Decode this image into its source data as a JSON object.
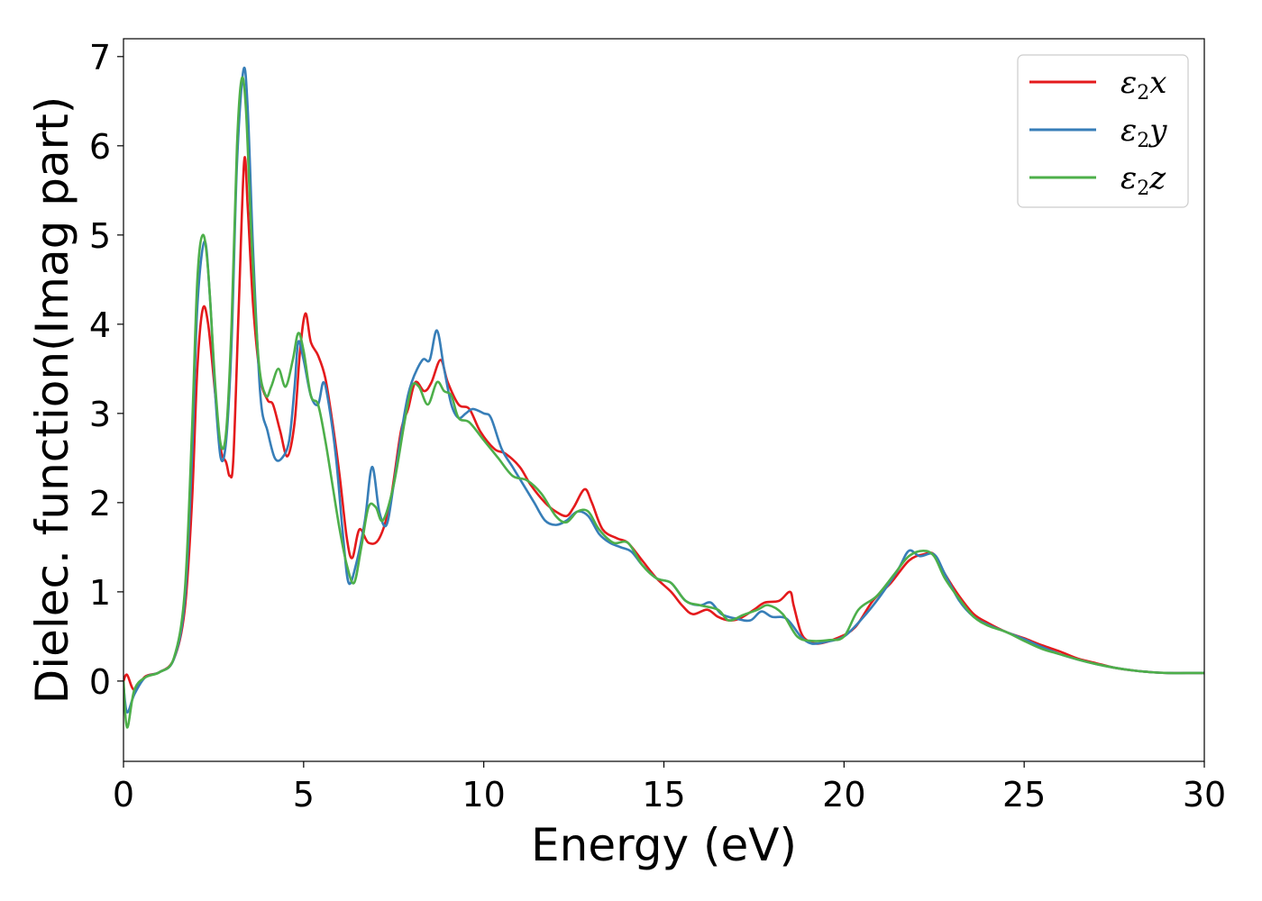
{
  "chart_data": {
    "type": "line",
    "xlabel": "Energy (eV)",
    "ylabel": "Dielec. function(Imag part)",
    "xlim": [
      0,
      30
    ],
    "ylim": [
      -0.9,
      7.2
    ],
    "xticks": [
      0,
      5,
      10,
      15,
      20,
      25,
      30
    ],
    "yticks": [
      0,
      1,
      2,
      3,
      4,
      5,
      6,
      7
    ],
    "grid": false,
    "legend_position": "top-right",
    "series": [
      {
        "name": "ε₂x",
        "legend": {
          "base": "ε",
          "sub": "2",
          "suffix": "x"
        },
        "color": "#e41a1c",
        "points": [
          [
            0,
            0.0
          ],
          [
            0.1,
            0.07
          ],
          [
            0.3,
            -0.1
          ],
          [
            0.6,
            0.05
          ],
          [
            1.0,
            0.1
          ],
          [
            1.4,
            0.25
          ],
          [
            1.7,
            0.8
          ],
          [
            1.9,
            2.0
          ],
          [
            2.05,
            3.5
          ],
          [
            2.2,
            4.17
          ],
          [
            2.35,
            4.0
          ],
          [
            2.55,
            3.2
          ],
          [
            2.7,
            2.6
          ],
          [
            2.85,
            2.45
          ],
          [
            2.95,
            2.3
          ],
          [
            3.05,
            2.5
          ],
          [
            3.2,
            4.2
          ],
          [
            3.35,
            5.83
          ],
          [
            3.45,
            5.3
          ],
          [
            3.6,
            4.2
          ],
          [
            3.8,
            3.4
          ],
          [
            4.0,
            3.15
          ],
          [
            4.15,
            3.1
          ],
          [
            4.35,
            2.8
          ],
          [
            4.55,
            2.52
          ],
          [
            4.75,
            2.9
          ],
          [
            4.9,
            3.7
          ],
          [
            5.05,
            4.12
          ],
          [
            5.2,
            3.8
          ],
          [
            5.4,
            3.65
          ],
          [
            5.6,
            3.4
          ],
          [
            5.8,
            2.9
          ],
          [
            6.0,
            2.3
          ],
          [
            6.2,
            1.6
          ],
          [
            6.35,
            1.38
          ],
          [
            6.55,
            1.7
          ],
          [
            6.8,
            1.55
          ],
          [
            7.1,
            1.6
          ],
          [
            7.4,
            2.0
          ],
          [
            7.7,
            2.8
          ],
          [
            7.9,
            3.05
          ],
          [
            8.1,
            3.35
          ],
          [
            8.35,
            3.25
          ],
          [
            8.55,
            3.35
          ],
          [
            8.8,
            3.6
          ],
          [
            9.0,
            3.35
          ],
          [
            9.3,
            3.1
          ],
          [
            9.6,
            3.05
          ],
          [
            9.9,
            2.8
          ],
          [
            10.3,
            2.6
          ],
          [
            10.6,
            2.55
          ],
          [
            11.0,
            2.4
          ],
          [
            11.3,
            2.2
          ],
          [
            11.7,
            2.0
          ],
          [
            12.0,
            1.9
          ],
          [
            12.3,
            1.85
          ],
          [
            12.5,
            1.95
          ],
          [
            12.8,
            2.15
          ],
          [
            13.0,
            2.0
          ],
          [
            13.3,
            1.7
          ],
          [
            13.7,
            1.6
          ],
          [
            14.0,
            1.55
          ],
          [
            14.4,
            1.35
          ],
          [
            14.8,
            1.15
          ],
          [
            15.2,
            1.0
          ],
          [
            15.5,
            0.85
          ],
          [
            15.8,
            0.75
          ],
          [
            16.2,
            0.8
          ],
          [
            16.5,
            0.72
          ],
          [
            16.8,
            0.68
          ],
          [
            17.1,
            0.7
          ],
          [
            17.5,
            0.8
          ],
          [
            17.8,
            0.88
          ],
          [
            18.2,
            0.9
          ],
          [
            18.5,
            1.0
          ],
          [
            18.6,
            0.85
          ],
          [
            18.8,
            0.55
          ],
          [
            19.0,
            0.45
          ],
          [
            19.3,
            0.42
          ],
          [
            19.8,
            0.48
          ],
          [
            20.3,
            0.6
          ],
          [
            20.8,
            0.9
          ],
          [
            21.3,
            1.1
          ],
          [
            21.8,
            1.35
          ],
          [
            22.2,
            1.42
          ],
          [
            22.5,
            1.42
          ],
          [
            22.8,
            1.2
          ],
          [
            23.2,
            0.95
          ],
          [
            23.6,
            0.75
          ],
          [
            24.0,
            0.65
          ],
          [
            24.5,
            0.55
          ],
          [
            25.0,
            0.48
          ],
          [
            25.5,
            0.4
          ],
          [
            26.0,
            0.33
          ],
          [
            26.5,
            0.25
          ],
          [
            27.0,
            0.2
          ],
          [
            27.5,
            0.15
          ],
          [
            28.0,
            0.12
          ],
          [
            28.5,
            0.1
          ],
          [
            29.0,
            0.09
          ],
          [
            29.5,
            0.09
          ],
          [
            30.0,
            0.09
          ]
        ]
      },
      {
        "name": "ε₂y",
        "legend": {
          "base": "ε",
          "sub": "2",
          "suffix": "y"
        },
        "color": "#377eb8",
        "points": [
          [
            0,
            -0.05
          ],
          [
            0.1,
            -0.35
          ],
          [
            0.3,
            -0.15
          ],
          [
            0.6,
            0.04
          ],
          [
            1.0,
            0.1
          ],
          [
            1.4,
            0.25
          ],
          [
            1.7,
            0.9
          ],
          [
            1.9,
            2.5
          ],
          [
            2.05,
            4.2
          ],
          [
            2.25,
            4.93
          ],
          [
            2.4,
            4.3
          ],
          [
            2.55,
            3.2
          ],
          [
            2.7,
            2.5
          ],
          [
            2.85,
            2.7
          ],
          [
            3.0,
            3.8
          ],
          [
            3.15,
            5.8
          ],
          [
            3.33,
            6.85
          ],
          [
            3.45,
            6.4
          ],
          [
            3.6,
            4.8
          ],
          [
            3.8,
            3.2
          ],
          [
            4.0,
            2.8
          ],
          [
            4.2,
            2.5
          ],
          [
            4.4,
            2.5
          ],
          [
            4.6,
            2.7
          ],
          [
            4.75,
            3.3
          ],
          [
            4.85,
            3.8
          ],
          [
            5.0,
            3.6
          ],
          [
            5.2,
            3.2
          ],
          [
            5.4,
            3.1
          ],
          [
            5.55,
            3.35
          ],
          [
            5.7,
            3.1
          ],
          [
            5.9,
            2.5
          ],
          [
            6.1,
            1.6
          ],
          [
            6.25,
            1.1
          ],
          [
            6.45,
            1.3
          ],
          [
            6.7,
            1.8
          ],
          [
            6.9,
            2.4
          ],
          [
            7.1,
            1.9
          ],
          [
            7.3,
            1.75
          ],
          [
            7.5,
            2.2
          ],
          [
            7.8,
            3.0
          ],
          [
            8.0,
            3.35
          ],
          [
            8.3,
            3.6
          ],
          [
            8.5,
            3.6
          ],
          [
            8.7,
            3.93
          ],
          [
            8.9,
            3.5
          ],
          [
            9.1,
            3.1
          ],
          [
            9.3,
            2.95
          ],
          [
            9.5,
            3.0
          ],
          [
            9.7,
            3.05
          ],
          [
            10.0,
            3.0
          ],
          [
            10.2,
            2.95
          ],
          [
            10.5,
            2.6
          ],
          [
            10.8,
            2.4
          ],
          [
            11.1,
            2.2
          ],
          [
            11.4,
            2.0
          ],
          [
            11.7,
            1.8
          ],
          [
            12.0,
            1.75
          ],
          [
            12.3,
            1.8
          ],
          [
            12.6,
            1.9
          ],
          [
            12.9,
            1.85
          ],
          [
            13.2,
            1.65
          ],
          [
            13.5,
            1.55
          ],
          [
            13.8,
            1.5
          ],
          [
            14.1,
            1.45
          ],
          [
            14.4,
            1.3
          ],
          [
            14.8,
            1.15
          ],
          [
            15.2,
            1.1
          ],
          [
            15.6,
            0.9
          ],
          [
            16.0,
            0.85
          ],
          [
            16.3,
            0.88
          ],
          [
            16.6,
            0.75
          ],
          [
            17.0,
            0.7
          ],
          [
            17.4,
            0.68
          ],
          [
            17.7,
            0.78
          ],
          [
            18.0,
            0.72
          ],
          [
            18.4,
            0.7
          ],
          [
            18.8,
            0.5
          ],
          [
            19.1,
            0.42
          ],
          [
            19.5,
            0.44
          ],
          [
            20.0,
            0.5
          ],
          [
            20.5,
            0.7
          ],
          [
            21.0,
            0.95
          ],
          [
            21.5,
            1.25
          ],
          [
            21.8,
            1.46
          ],
          [
            22.1,
            1.4
          ],
          [
            22.5,
            1.42
          ],
          [
            22.8,
            1.2
          ],
          [
            23.2,
            0.9
          ],
          [
            23.6,
            0.72
          ],
          [
            24.0,
            0.63
          ],
          [
            24.5,
            0.55
          ],
          [
            25.0,
            0.47
          ],
          [
            25.5,
            0.38
          ],
          [
            26.0,
            0.3
          ],
          [
            26.5,
            0.24
          ],
          [
            27.0,
            0.19
          ],
          [
            27.5,
            0.15
          ],
          [
            28.0,
            0.12
          ],
          [
            28.5,
            0.1
          ],
          [
            29.0,
            0.09
          ],
          [
            29.5,
            0.09
          ],
          [
            30.0,
            0.09
          ]
        ]
      },
      {
        "name": "ε₂z",
        "legend": {
          "base": "ε",
          "sub": "2",
          "suffix": "z"
        },
        "color": "#4daf4a",
        "points": [
          [
            0,
            0.0
          ],
          [
            0.1,
            -0.52
          ],
          [
            0.3,
            -0.1
          ],
          [
            0.6,
            0.04
          ],
          [
            1.0,
            0.1
          ],
          [
            1.4,
            0.26
          ],
          [
            1.7,
            1.0
          ],
          [
            1.9,
            2.8
          ],
          [
            2.05,
            4.5
          ],
          [
            2.2,
            5.0
          ],
          [
            2.35,
            4.6
          ],
          [
            2.55,
            3.3
          ],
          [
            2.7,
            2.65
          ],
          [
            2.85,
            2.8
          ],
          [
            3.0,
            4.0
          ],
          [
            3.15,
            6.0
          ],
          [
            3.28,
            6.75
          ],
          [
            3.4,
            6.4
          ],
          [
            3.55,
            5.0
          ],
          [
            3.75,
            3.6
          ],
          [
            3.95,
            3.2
          ],
          [
            4.1,
            3.3
          ],
          [
            4.3,
            3.5
          ],
          [
            4.5,
            3.3
          ],
          [
            4.7,
            3.6
          ],
          [
            4.85,
            3.9
          ],
          [
            5.0,
            3.7
          ],
          [
            5.2,
            3.2
          ],
          [
            5.4,
            3.1
          ],
          [
            5.6,
            2.7
          ],
          [
            5.8,
            2.2
          ],
          [
            6.0,
            1.7
          ],
          [
            6.2,
            1.3
          ],
          [
            6.4,
            1.1
          ],
          [
            6.6,
            1.5
          ],
          [
            6.8,
            1.95
          ],
          [
            7.0,
            1.95
          ],
          [
            7.2,
            1.8
          ],
          [
            7.5,
            2.2
          ],
          [
            7.8,
            2.9
          ],
          [
            8.0,
            3.3
          ],
          [
            8.2,
            3.3
          ],
          [
            8.45,
            3.1
          ],
          [
            8.7,
            3.35
          ],
          [
            8.9,
            3.25
          ],
          [
            9.1,
            3.2
          ],
          [
            9.3,
            2.95
          ],
          [
            9.6,
            2.9
          ],
          [
            10.0,
            2.7
          ],
          [
            10.4,
            2.5
          ],
          [
            10.8,
            2.3
          ],
          [
            11.2,
            2.25
          ],
          [
            11.6,
            2.1
          ],
          [
            12.0,
            1.85
          ],
          [
            12.3,
            1.78
          ],
          [
            12.6,
            1.9
          ],
          [
            12.9,
            1.9
          ],
          [
            13.2,
            1.7
          ],
          [
            13.6,
            1.55
          ],
          [
            14.0,
            1.55
          ],
          [
            14.4,
            1.3
          ],
          [
            14.8,
            1.15
          ],
          [
            15.2,
            1.1
          ],
          [
            15.6,
            0.9
          ],
          [
            16.0,
            0.85
          ],
          [
            16.5,
            0.8
          ],
          [
            16.8,
            0.68
          ],
          [
            17.2,
            0.74
          ],
          [
            17.6,
            0.8
          ],
          [
            17.9,
            0.85
          ],
          [
            18.3,
            0.75
          ],
          [
            18.7,
            0.5
          ],
          [
            19.1,
            0.45
          ],
          [
            19.6,
            0.46
          ],
          [
            20.0,
            0.5
          ],
          [
            20.4,
            0.8
          ],
          [
            20.9,
            0.95
          ],
          [
            21.4,
            1.2
          ],
          [
            21.8,
            1.4
          ],
          [
            22.2,
            1.46
          ],
          [
            22.5,
            1.4
          ],
          [
            22.8,
            1.15
          ],
          [
            23.2,
            0.92
          ],
          [
            23.6,
            0.72
          ],
          [
            24.0,
            0.62
          ],
          [
            24.5,
            0.55
          ],
          [
            25.0,
            0.45
          ],
          [
            25.5,
            0.36
          ],
          [
            26.0,
            0.3
          ],
          [
            26.5,
            0.24
          ],
          [
            27.0,
            0.19
          ],
          [
            27.5,
            0.15
          ],
          [
            28.0,
            0.12
          ],
          [
            28.5,
            0.1
          ],
          [
            29.0,
            0.09
          ],
          [
            29.5,
            0.09
          ],
          [
            30.0,
            0.09
          ]
        ]
      }
    ]
  }
}
